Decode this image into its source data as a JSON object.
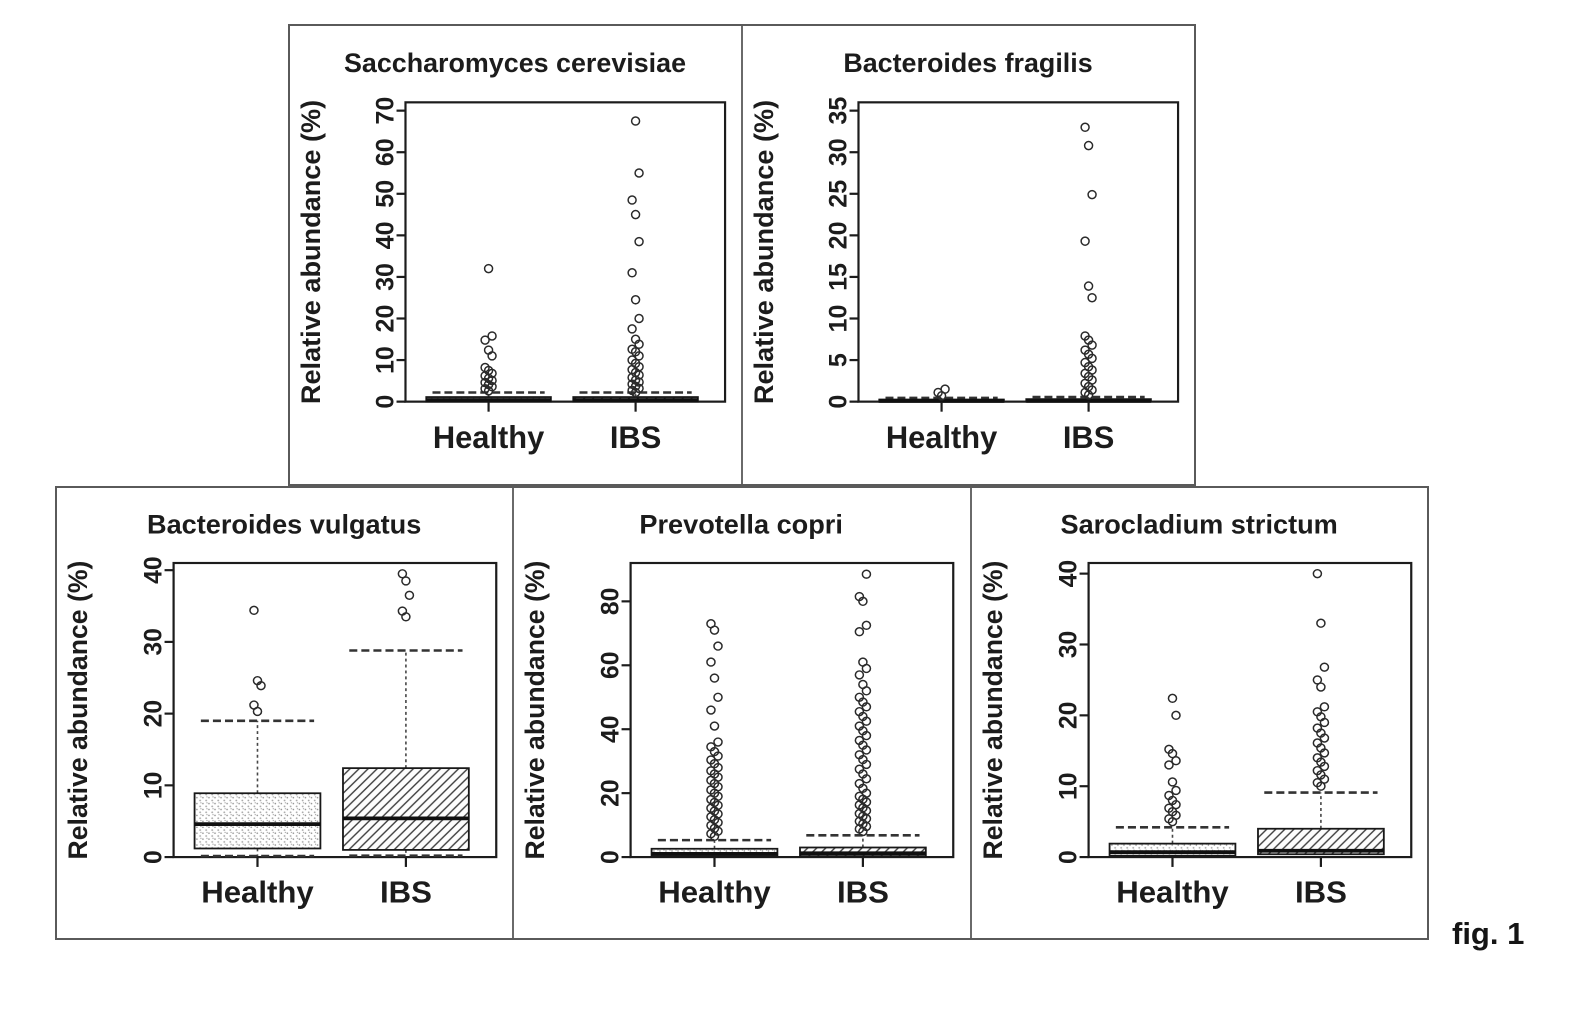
{
  "figure": {
    "label": "fig. 1"
  },
  "ink_color": "#1c1c1c",
  "chart_data": {
    "type": "boxplot",
    "ylabel": "Relative abundance (%)",
    "categories": [
      "Healthy",
      "IBS"
    ],
    "layout": {
      "rows": [
        2,
        3
      ],
      "grid": false,
      "legend": "none",
      "tick_label_rotation": 90
    },
    "panels": [
      {
        "title": "Saccharomyces cerevisiae",
        "ylim": [
          0,
          72
        ],
        "yticks": [
          0,
          10,
          20,
          30,
          40,
          50,
          60,
          70
        ],
        "groups": [
          {
            "label": "Healthy",
            "box_fill": "stipple",
            "whisker_low": 0,
            "q1": 0,
            "median": 0.4,
            "q3": 1.1,
            "whisker_high": 2.2,
            "outliers": [
              2.6,
              3.1,
              3.6,
              4.1,
              4.6,
              5.1,
              5.6,
              6.2,
              6.8,
              7.5,
              8.2,
              11,
              12.4,
              14.8,
              15.8,
              32
            ]
          },
          {
            "label": "IBS",
            "box_fill": "hatch",
            "whisker_low": 0,
            "q1": 0,
            "median": 0.4,
            "q3": 1.1,
            "whisker_high": 2.2,
            "outliers": [
              2.2,
              2.7,
              3.2,
              3.7,
              4.2,
              4.7,
              5.2,
              5.8,
              6.4,
              7,
              7.7,
              8.4,
              9.2,
              10,
              11,
              12,
              12.6,
              13.8,
              15,
              17.5,
              20,
              24.5,
              31,
              38.5,
              45,
              48.5,
              55,
              67.5
            ]
          }
        ]
      },
      {
        "title": "Bacteroides fragilis",
        "ylim": [
          0,
          36
        ],
        "yticks": [
          0,
          5,
          10,
          15,
          20,
          25,
          30,
          35
        ],
        "groups": [
          {
            "label": "Healthy",
            "box_fill": "stipple",
            "whisker_low": 0,
            "q1": 0,
            "median": 0.1,
            "q3": 0.25,
            "whisker_high": 0.45,
            "outliers": [
              0.7,
              1.1,
              1.5
            ]
          },
          {
            "label": "IBS",
            "box_fill": "hatch",
            "whisker_low": 0,
            "q1": 0,
            "median": 0.1,
            "q3": 0.3,
            "whisker_high": 0.55,
            "outliers": [
              0.8,
              1.1,
              1.4,
              1.8,
              2.2,
              2.6,
              3,
              3.4,
              3.8,
              4.2,
              4.7,
              5.2,
              5.7,
              6.2,
              6.8,
              7.4,
              7.9,
              12.5,
              13.9,
              19.3,
              24.9,
              30.8,
              33
            ]
          }
        ]
      },
      {
        "title": "Bacteroides vulgatus",
        "ylim": [
          0,
          41
        ],
        "yticks": [
          0,
          10,
          20,
          30,
          40
        ],
        "groups": [
          {
            "label": "Healthy",
            "box_fill": "stipple",
            "whisker_low": 0.15,
            "q1": 1.2,
            "median": 4.6,
            "q3": 8.9,
            "whisker_high": 19,
            "outliers": [
              20.3,
              21.2,
              23.9,
              24.6,
              34.4
            ]
          },
          {
            "label": "IBS",
            "box_fill": "hatch",
            "whisker_low": 0.2,
            "q1": 1.0,
            "median": 5.4,
            "q3": 12.4,
            "whisker_high": 28.8,
            "outliers": [
              33.5,
              34.3,
              36.5,
              38.5,
              39.5
            ]
          }
        ]
      },
      {
        "title": "Prevotella copri",
        "ylim": [
          0,
          92
        ],
        "yticks": [
          0,
          20,
          40,
          60,
          80
        ],
        "groups": [
          {
            "label": "Healthy",
            "box_fill": "stipple",
            "whisker_low": 0,
            "q1": 0.2,
            "median": 1,
            "q3": 2.6,
            "whisker_high": 5.3,
            "outliers": [
              6.5,
              7.3,
              8.1,
              9,
              9.9,
              10.8,
              11.7,
              12.6,
              13.5,
              14.4,
              15.3,
              16.2,
              17.1,
              18,
              19,
              20,
              21,
              22,
              23,
              24,
              25,
              26,
              27,
              28,
              29.2,
              30.4,
              31.6,
              33,
              34.5,
              36,
              41,
              46,
              50,
              56,
              61,
              66,
              71,
              73
            ]
          },
          {
            "label": "IBS",
            "box_fill": "hatch",
            "whisker_low": 0,
            "q1": 0.3,
            "median": 1.2,
            "q3": 3,
            "whisker_high": 6.8,
            "outliers": [
              8,
              8.8,
              9.6,
              10.4,
              11.2,
              12,
              12.8,
              13.6,
              14.5,
              15.4,
              16.3,
              17.2,
              18.1,
              19,
              20,
              21.5,
              23,
              24.5,
              26,
              27.5,
              29,
              30.5,
              32,
              33.5,
              35,
              36.5,
              38,
              39.5,
              41,
              42.5,
              44,
              45.5,
              47,
              48.5,
              50,
              52,
              54,
              57,
              59,
              61,
              70.5,
              72.5,
              80,
              81.5,
              88.5
            ]
          }
        ]
      },
      {
        "title": "Sarocladium strictum",
        "ylim": [
          0,
          41.5
        ],
        "yticks": [
          0,
          10,
          20,
          30,
          40
        ],
        "groups": [
          {
            "label": "Healthy",
            "box_fill": "stipple",
            "whisker_low": 0,
            "q1": 0.2,
            "median": 0.7,
            "q3": 1.9,
            "whisker_high": 4.2,
            "outliers": [
              5,
              5.4,
              5.9,
              6.4,
              6.9,
              7.4,
              8,
              8.7,
              9.4,
              10.6,
              13,
              13.6,
              14.6,
              15.2,
              20,
              22.4
            ]
          },
          {
            "label": "IBS",
            "box_fill": "hatch",
            "whisker_low": 0,
            "q1": 0.4,
            "median": 0.9,
            "q3": 4,
            "whisker_high": 9.1,
            "outliers": [
              10,
              10.5,
              11,
              11.6,
              12.2,
              12.8,
              13.4,
              14,
              14.7,
              15.4,
              16.1,
              16.8,
              17.5,
              18.2,
              19,
              19.8,
              20.5,
              21.2,
              24,
              25,
              26.8,
              33,
              40
            ]
          }
        ]
      }
    ]
  }
}
